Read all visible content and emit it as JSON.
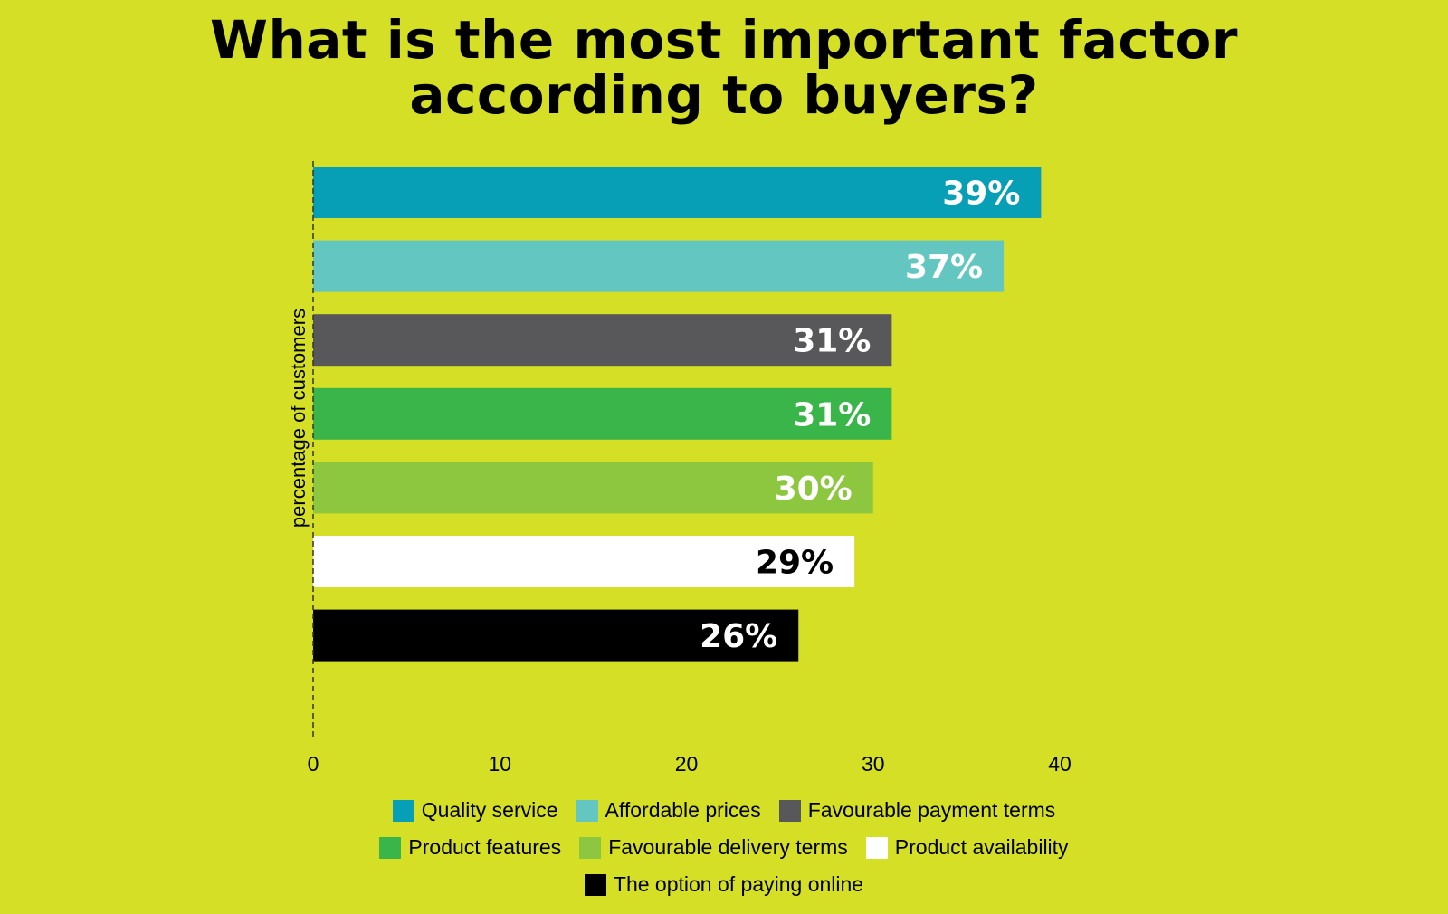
{
  "chart_data": {
    "type": "bar",
    "orientation": "horizontal",
    "title_lines": [
      "What is the most important factor",
      "according to buyers?"
    ],
    "xlabel": "",
    "ylabel": "percentage of customers",
    "xlim": [
      0,
      40
    ],
    "x_ticks": [
      "0",
      "10",
      "20",
      "30",
      "40"
    ],
    "grid": false,
    "legend_position": "bottom",
    "categories": [
      "Quality service",
      "Affordable prices",
      "Favourable payment terms",
      "Product features",
      "Favourable delivery terms",
      "Product availability",
      "The option of paying online"
    ],
    "values": [
      39,
      37,
      31,
      31,
      30,
      29,
      26
    ],
    "data_labels": [
      "39%",
      "37%",
      "31%",
      "31%",
      "30%",
      "29%",
      "26%"
    ],
    "colors": [
      "#079fb5",
      "#63c6c0",
      "#58585a",
      "#39b54a",
      "#8dc63f",
      "#ffffff",
      "#000000"
    ],
    "label_colors": [
      "#ffffff",
      "#ffffff",
      "#ffffff",
      "#ffffff",
      "#ffffff",
      "#000000",
      "#ffffff"
    ]
  },
  "legend_rows": [
    [
      0,
      1,
      2
    ],
    [
      3,
      4,
      5
    ],
    [
      6
    ]
  ],
  "background": "#d5df25"
}
